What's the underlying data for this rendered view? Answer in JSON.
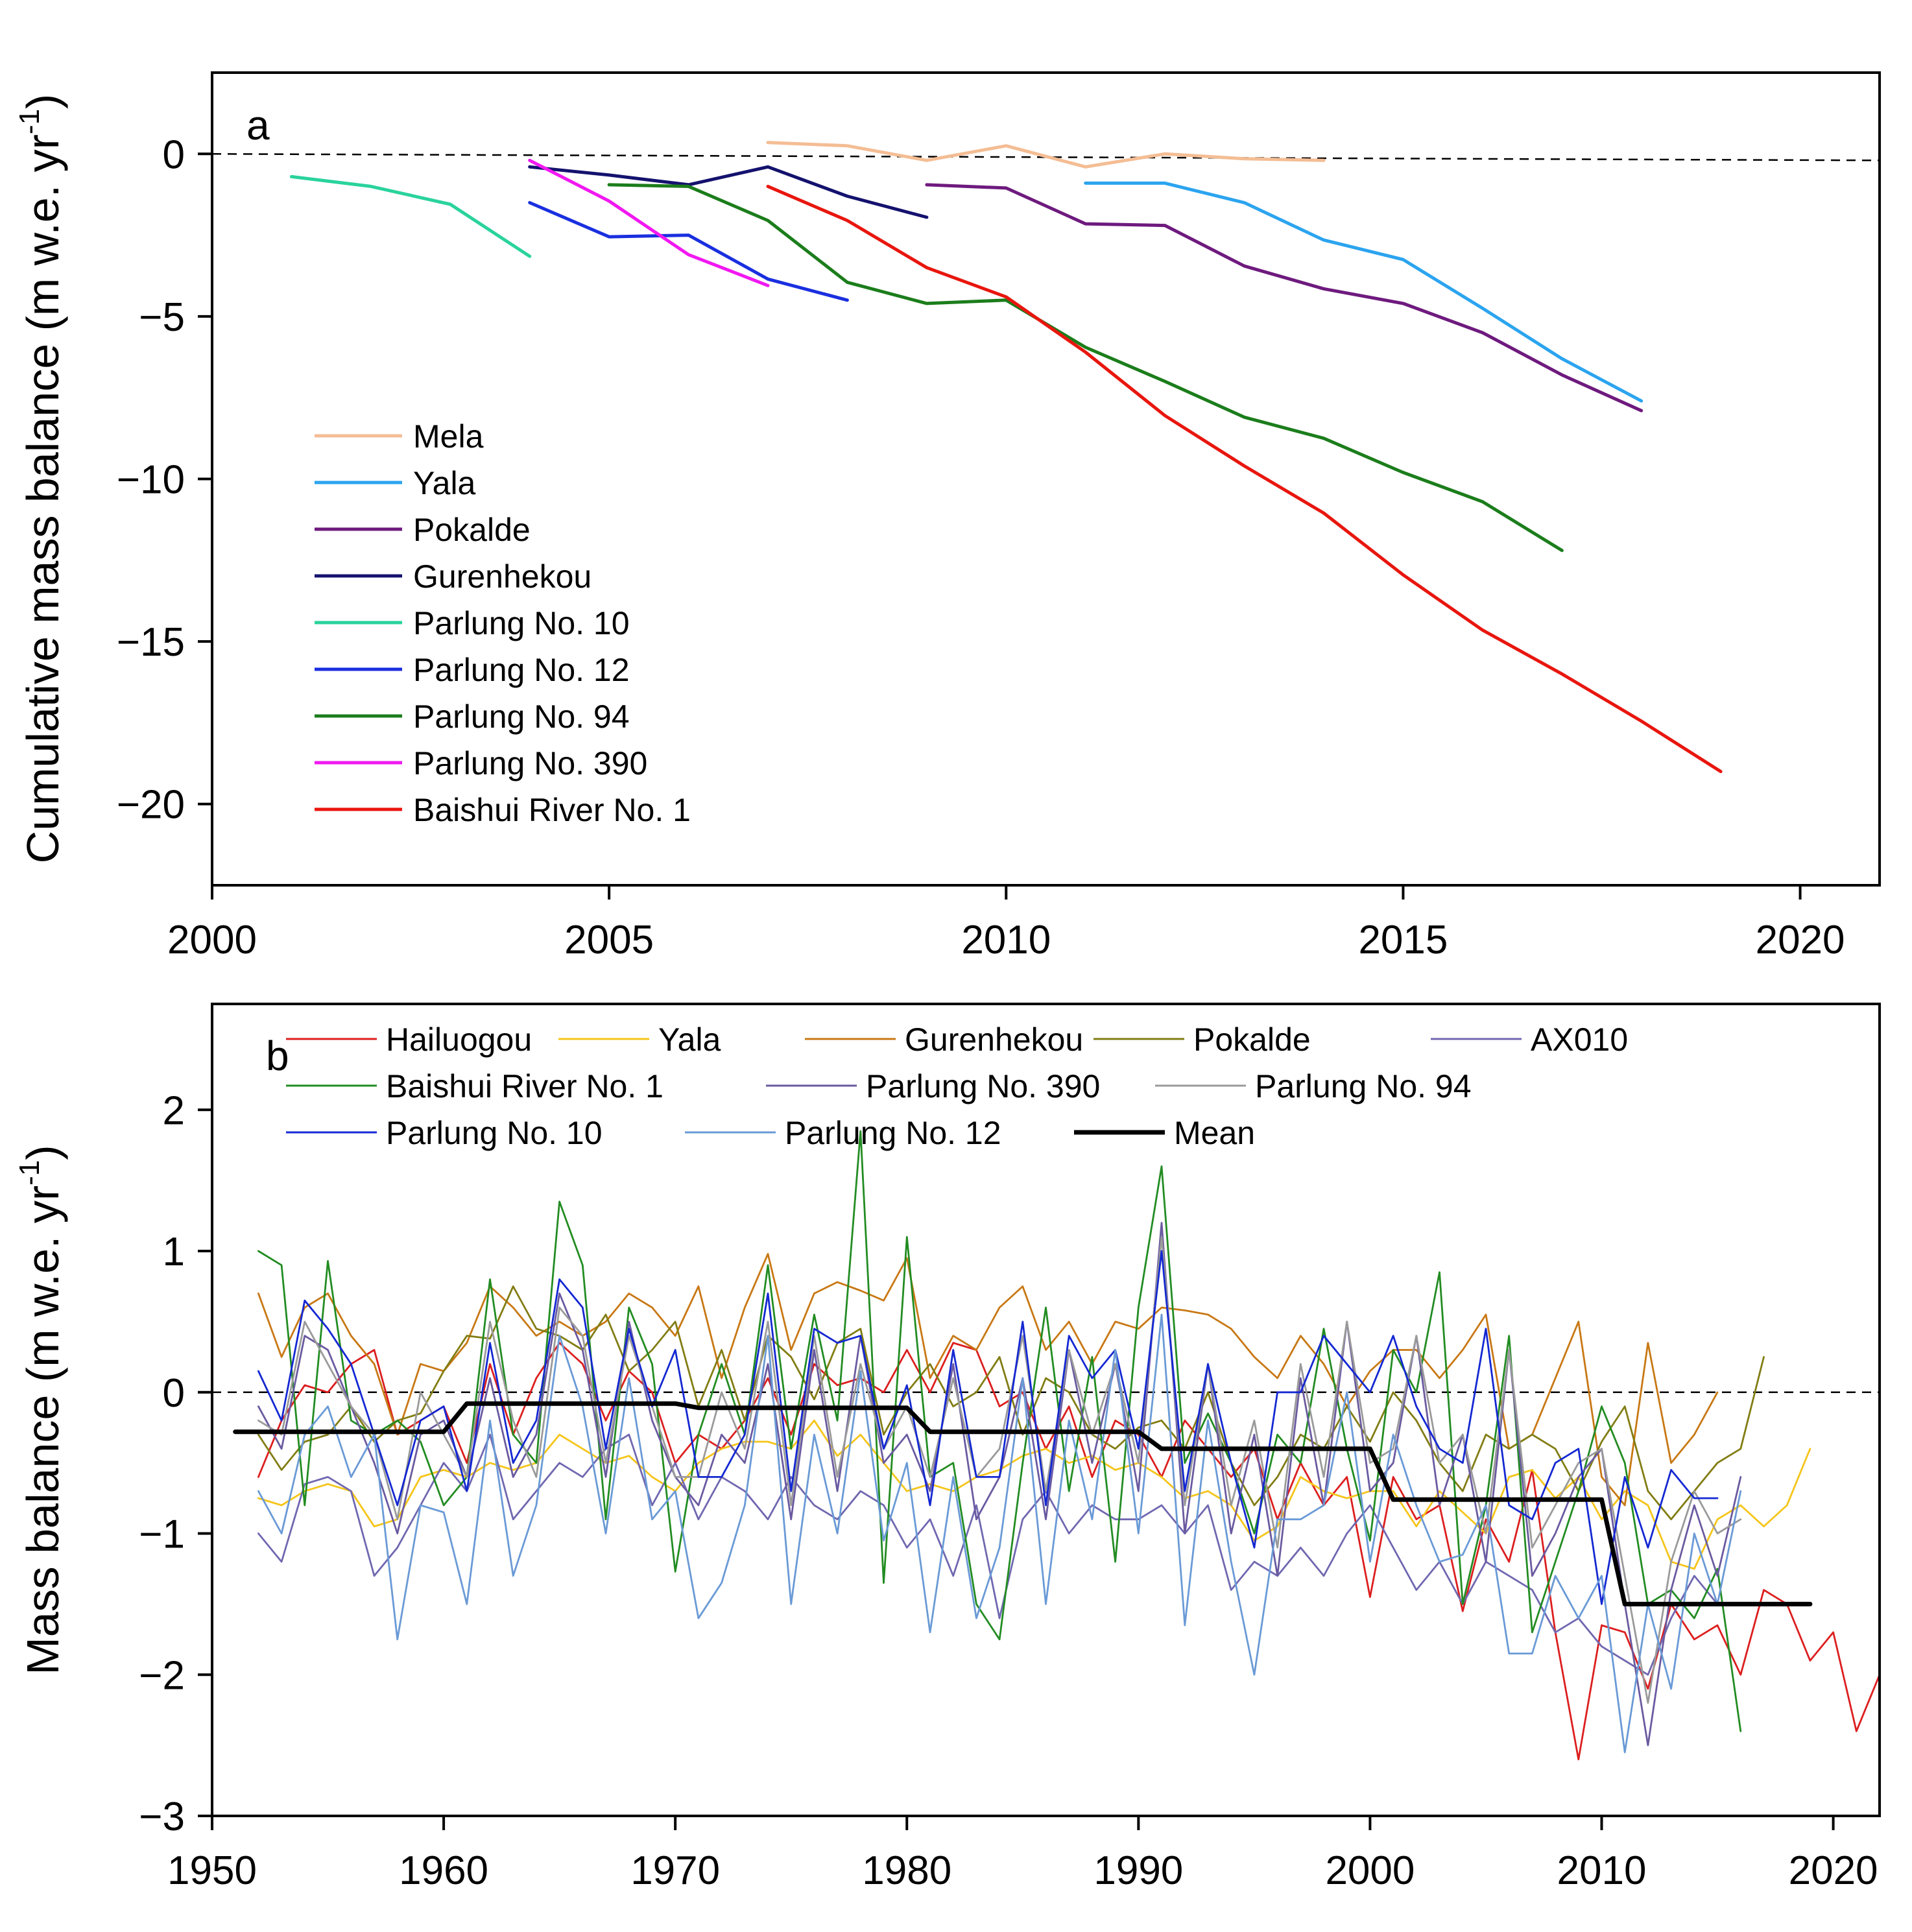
{
  "chart_data": [
    {
      "panel": "a",
      "type": "line",
      "ylabel_main": "Cumulative mass balance (m w.e. yr",
      "ylabel_sup": "-1",
      "ylabel_tail": ")",
      "xlim": [
        2000,
        2021
      ],
      "ylim": [
        -22.5,
        2.5
      ],
      "xticks": [
        2000,
        2005,
        2010,
        2015,
        2020
      ],
      "xtick_labels": [
        "2000",
        "2005",
        "2010",
        "2015",
        "2020"
      ],
      "yticks": [
        0,
        -5,
        -10,
        -15,
        -20
      ],
      "ytick_labels": [
        "0",
        "−5",
        "−10",
        "−15",
        "−20"
      ],
      "reference_line": {
        "x": [
          2000,
          2021
        ],
        "y": [
          0,
          -0.2
        ],
        "style": "dashed"
      },
      "legend_position": "lower-left",
      "series": [
        {
          "name": "Mela",
          "color": "#f4bd94",
          "x": [
            2007,
            2008,
            2009,
            2010,
            2011,
            2012,
            2013,
            2014
          ],
          "y": [
            0.35,
            0.25,
            -0.2,
            0.25,
            -0.4,
            0.0,
            -0.15,
            -0.2
          ]
        },
        {
          "name": "Yala",
          "color": "#2ba4ef",
          "x": [
            2011,
            2012,
            2013,
            2014,
            2015,
            2016,
            2017,
            2018
          ],
          "y": [
            -0.9,
            -0.9,
            -1.5,
            -2.65,
            -3.25,
            -4.75,
            -6.3,
            -7.6
          ]
        },
        {
          "name": "Pokalde",
          "color": "#6e1a7e",
          "x": [
            2009,
            2010,
            2011,
            2012,
            2013,
            2014,
            2015,
            2016,
            2017,
            2018
          ],
          "y": [
            -0.95,
            -1.05,
            -2.15,
            -2.2,
            -3.45,
            -4.15,
            -4.6,
            -5.5,
            -6.8,
            -7.9
          ]
        },
        {
          "name": "Gurenhekou",
          "color": "#14126e",
          "x": [
            2004,
            2005,
            2006,
            2007,
            2008,
            2009
          ],
          "y": [
            -0.4,
            -0.65,
            -0.95,
            -0.4,
            -1.3,
            -1.95
          ]
        },
        {
          "name": "Parlung No. 10",
          "color": "#2ad39c",
          "x": [
            2001,
            2002,
            2003,
            2004
          ],
          "y": [
            -0.7,
            -1.0,
            -1.55,
            -3.15
          ]
        },
        {
          "name": "Parlung No. 12",
          "color": "#1a2fdf",
          "x": [
            2004,
            2005,
            2006,
            2007,
            2008
          ],
          "y": [
            -1.5,
            -2.55,
            -2.5,
            -3.85,
            -4.5
          ]
        },
        {
          "name": "Parlung No. 94",
          "color": "#1b7d1b",
          "x": [
            2005,
            2006,
            2007,
            2008,
            2009,
            2010,
            2011,
            2012,
            2013,
            2014,
            2015,
            2016,
            2017
          ],
          "y": [
            -0.95,
            -1.0,
            -2.05,
            -3.95,
            -4.6,
            -4.5,
            -5.95,
            -7.0,
            -8.1,
            -8.75,
            -9.8,
            -10.7,
            -12.2
          ]
        },
        {
          "name": "Parlung No. 390",
          "color": "#f118f1",
          "x": [
            2004,
            2005,
            2006,
            2007
          ],
          "y": [
            -0.2,
            -1.45,
            -3.1,
            -4.05
          ]
        },
        {
          "name": "Baishui River No. 1",
          "color": "#e8160e",
          "x": [
            2007,
            2008,
            2009,
            2010,
            2011,
            2012,
            2013,
            2014,
            2015,
            2016,
            2017,
            2018,
            2019
          ],
          "y": [
            -1.0,
            -2.05,
            -3.5,
            -4.4,
            -6.1,
            -8.05,
            -9.6,
            -11.05,
            -12.95,
            -14.65,
            -16.0,
            -17.45,
            -19.0
          ]
        }
      ]
    },
    {
      "panel": "b",
      "type": "line",
      "ylabel_main": "Mass balance (m w.e. yr",
      "ylabel_sup": "-1",
      "ylabel_tail": ")",
      "xlim": [
        1950,
        2022
      ],
      "ylim": [
        -3,
        2.75
      ],
      "xticks": [
        1950,
        1960,
        1970,
        1980,
        1990,
        2000,
        2010,
        2020
      ],
      "xtick_labels": [
        "1950",
        "1960",
        "1970",
        "1980",
        "1990",
        "2000",
        "2010",
        "2020"
      ],
      "yticks": [
        2,
        1,
        0,
        -1,
        -2,
        -3
      ],
      "ytick_labels": [
        "2",
        "1",
        "0",
        "−1",
        "−2",
        "−3"
      ],
      "reference_line": {
        "x": [
          1950,
          2022
        ],
        "y": [
          0,
          0
        ],
        "style": "dashed"
      },
      "legend_position": "top",
      "series": [
        {
          "name": "Hailuogou",
          "color": "#dc1e1e",
          "x0": 1952,
          "y": [
            -0.6,
            -0.2,
            0.05,
            0.0,
            0.2,
            0.3,
            -0.3,
            -0.2,
            -0.1,
            -0.5,
            0.2,
            -0.3,
            0.1,
            0.35,
            0.2,
            -0.2,
            0.15,
            0.0,
            -0.5,
            -0.3,
            -0.4,
            -0.2,
            0.1,
            -0.3,
            0.2,
            0.05,
            0.1,
            0.0,
            0.3,
            0.0,
            0.35,
            0.3,
            -0.1,
            0.0,
            -0.4,
            -0.1,
            -0.6,
            -0.2,
            -0.3,
            -0.6,
            -0.2,
            -0.4,
            -0.6,
            -0.4,
            -0.9,
            -0.5,
            -0.8,
            -0.6,
            -1.45,
            -0.6,
            -0.9,
            -0.8,
            -1.55,
            -0.9,
            -1.2,
            -0.55,
            -1.7,
            -2.6,
            -1.65,
            -1.7,
            -2.1,
            -1.5,
            -1.75,
            -1.65,
            -2.0,
            -1.4,
            -1.5,
            -1.9,
            -1.7,
            -2.4,
            -2.0
          ]
        },
        {
          "name": "Yala",
          "color": "#f5c51a",
          "x0": 1952,
          "y": [
            -0.75,
            -0.8,
            -0.7,
            -0.65,
            -0.7,
            -0.95,
            -0.9,
            -0.6,
            -0.55,
            -0.6,
            -0.5,
            -0.55,
            -0.5,
            -0.3,
            -0.4,
            -0.5,
            -0.45,
            -0.6,
            -0.7,
            -0.5,
            -0.4,
            -0.35,
            -0.35,
            -0.4,
            -0.2,
            -0.45,
            -0.3,
            -0.5,
            -0.7,
            -0.65,
            -0.7,
            -0.6,
            -0.55,
            -0.45,
            -0.4,
            -0.5,
            -0.45,
            -0.55,
            -0.5,
            -0.6,
            -0.75,
            -0.7,
            -0.8,
            -1.05,
            -0.95,
            -0.6,
            -0.7,
            -0.75,
            -0.7,
            -0.7,
            -0.95,
            -0.7,
            -0.85,
            -1.0,
            -0.6,
            -0.55,
            -0.75,
            -0.6,
            -0.9,
            -0.7,
            -0.8,
            -1.2,
            -1.25,
            -0.9,
            -0.8,
            -0.95,
            -0.8,
            -0.4
          ]
        },
        {
          "name": "Gurenhekou",
          "color": "#c87814",
          "x0": 1952,
          "y": [
            0.7,
            0.25,
            0.6,
            0.7,
            0.4,
            0.2,
            -0.3,
            0.2,
            0.15,
            0.35,
            0.75,
            0.6,
            0.4,
            0.5,
            0.4,
            0.5,
            0.7,
            0.6,
            0.4,
            0.75,
            0.1,
            0.6,
            0.98,
            0.3,
            0.7,
            0.78,
            0.72,
            0.65,
            0.95,
            0.1,
            0.4,
            0.3,
            0.6,
            0.75,
            0.3,
            0.5,
            0.2,
            0.5,
            0.45,
            0.6,
            0.58,
            0.55,
            0.45,
            0.25,
            0.1,
            0.4,
            0.2,
            -0.1,
            0.15,
            0.3,
            0.3,
            0.1,
            0.3,
            0.55,
            -0.4,
            -0.3,
            0.1,
            0.5,
            -0.6,
            -0.8,
            0.35,
            -0.5,
            -0.3,
            0.0
          ]
        },
        {
          "name": "Pokalde",
          "color": "#827d14",
          "x0": 1952,
          "y": [
            -0.3,
            -0.55,
            -0.35,
            -0.3,
            -0.1,
            -0.35,
            -0.2,
            -0.15,
            0.15,
            0.4,
            0.38,
            0.75,
            0.45,
            0.4,
            0.3,
            0.55,
            0.15,
            0.3,
            0.5,
            -0.1,
            0.3,
            -0.2,
            0.4,
            0.25,
            -0.05,
            0.35,
            0.45,
            -0.3,
            0.0,
            0.2,
            -0.1,
            0.0,
            0.25,
            -0.3,
            0.1,
            0.0,
            -0.3,
            -0.4,
            -0.25,
            -0.2,
            -0.4,
            0.0,
            -0.5,
            -0.8,
            -0.6,
            -0.3,
            -0.4,
            -0.1,
            -0.35,
            0.0,
            -0.2,
            -0.5,
            -0.7,
            -0.3,
            -0.4,
            -0.3,
            -0.4,
            -0.7,
            -0.35,
            -0.1,
            -0.7,
            -0.9,
            -0.7,
            -0.5,
            -0.4,
            0.25
          ]
        },
        {
          "name": "AX010",
          "color": "#7068b0",
          "x0": 1952,
          "y": [
            -1.0,
            -1.2,
            -0.65,
            -0.6,
            -0.7,
            -1.3,
            -1.1,
            -0.8,
            -0.5,
            -0.7,
            -0.3,
            -0.9,
            -0.7,
            -0.5,
            -0.6,
            -0.4,
            -0.3,
            -0.8,
            -0.5,
            -0.9,
            -0.6,
            -0.7,
            -0.9,
            -0.6,
            -0.8,
            -0.9,
            -0.7,
            -0.8,
            -1.1,
            -0.9,
            -1.3,
            -0.8,
            -1.6,
            -0.9,
            -0.7,
            -1.0,
            -0.8,
            -0.9,
            -0.9,
            -0.8,
            -1.0,
            -0.8,
            -1.4,
            -1.2,
            -1.3,
            -1.1,
            -1.3,
            -1.0,
            -0.8,
            -1.1,
            -1.4,
            -1.2,
            -1.5,
            -1.2,
            -1.3,
            -1.4,
            -1.7,
            -1.6,
            -1.8,
            -1.9,
            -2.0,
            -1.6,
            -1.3,
            -1.5
          ]
        },
        {
          "name": "Baishui River No. 1",
          "color": "#228c22",
          "x0": 1952,
          "y": [
            1.0,
            0.9,
            -0.8,
            0.93,
            -0.2,
            -0.3,
            -0.2,
            -0.35,
            -0.8,
            -0.6,
            0.8,
            -0.3,
            -0.5,
            1.35,
            0.9,
            -0.9,
            0.6,
            0.2,
            -1.27,
            -0.3,
            0.2,
            -0.3,
            0.9,
            -0.4,
            0.55,
            -0.2,
            1.85,
            -1.35,
            1.1,
            -0.6,
            -0.5,
            -1.5,
            -1.75,
            -0.5,
            0.6,
            -0.7,
            0.25,
            -1.2,
            0.6,
            1.6,
            -0.5,
            -0.15,
            -0.5,
            -1.0,
            -0.3,
            -0.5,
            0.45,
            -0.4,
            -1.05,
            0.3,
            0.0,
            0.85,
            -1.5,
            -0.8,
            0.4,
            -1.7,
            -1.2,
            -0.7,
            -0.1,
            -0.5,
            -1.5,
            -1.4,
            -1.6,
            -1.25,
            -2.4
          ]
        },
        {
          "name": "Parlung No. 390",
          "color": "#6a5aa0",
          "x0": 1952,
          "y": [
            -0.1,
            -0.4,
            0.4,
            0.3,
            -0.1,
            -0.5,
            -1.0,
            -0.3,
            -0.2,
            -0.6,
            0.1,
            -0.6,
            -0.3,
            0.7,
            0.3,
            -0.6,
            0.5,
            -0.2,
            -0.6,
            -0.8,
            -0.3,
            -0.5,
            0.2,
            -0.9,
            0.3,
            -0.7,
            0.4,
            -0.5,
            -0.3,
            -0.7,
            0.2,
            -0.9,
            -0.6,
            0.1,
            -0.9,
            0.3,
            -0.5,
            0.2,
            -0.7,
            1.2,
            -1.0,
            0.2,
            -1.0,
            -0.3,
            -1.3,
            0.1,
            -0.8,
            0.5,
            -0.7,
            -0.5,
            0.4,
            -0.8,
            -0.3,
            -1.2,
            0.3,
            -1.3,
            -1.0,
            -0.6,
            -0.4,
            -1.5,
            -2.5,
            -1.4,
            -0.8,
            -1.3,
            -0.6
          ]
        },
        {
          "name": "Parlung No. 94",
          "color": "#9a9a9a",
          "x0": 1952,
          "y": [
            -0.2,
            -0.3,
            0.5,
            0.2,
            -0.1,
            -0.3,
            -0.9,
            0.0,
            -0.3,
            -0.6,
            0.5,
            -0.2,
            -0.6,
            0.6,
            0.4,
            -0.5,
            0.4,
            -0.1,
            -0.6,
            -0.6,
            0.0,
            -0.4,
            0.5,
            -0.8,
            0.4,
            -0.6,
            0.2,
            -0.4,
            -0.1,
            -0.6,
            0.1,
            -0.6,
            -0.4,
            0.4,
            -0.7,
            0.3,
            -0.3,
            0.2,
            -0.5,
            1.1,
            -0.8,
            0.2,
            -0.8,
            -0.2,
            -1.1,
            0.2,
            -0.6,
            0.5,
            -0.5,
            -0.4,
            0.4,
            -0.5,
            -0.3,
            -1.0,
            0.3,
            -1.1,
            -0.8,
            -0.5,
            -0.4,
            -1.3,
            -2.2,
            -1.2,
            -0.7,
            -1.0,
            -0.9
          ]
        },
        {
          "name": "Parlung No. 10",
          "color": "#1428d2",
          "x0": 1952,
          "y": [
            0.15,
            -0.2,
            0.65,
            0.45,
            0.2,
            -0.3,
            -0.8,
            -0.2,
            -0.1,
            -0.7,
            0.35,
            -0.5,
            -0.2,
            0.8,
            0.6,
            -0.4,
            0.45,
            -0.1,
            0.3,
            -0.6,
            -0.6,
            -0.3,
            0.7,
            -0.7,
            0.45,
            0.35,
            0.4,
            -0.4,
            0.05,
            -0.8,
            0.3,
            -0.6,
            -0.6,
            0.5,
            -0.8,
            0.4,
            0.1,
            0.3,
            -0.4,
            1.0,
            -0.7,
            0.2,
            -0.5,
            -1.1,
            0.0,
            0.0,
            0.4,
            0.2,
            0.0,
            0.4,
            -0.1,
            -0.4,
            -0.5,
            0.45,
            -0.8,
            -0.9,
            -0.5,
            -0.4,
            -1.5,
            -0.6,
            -1.1,
            -0.55,
            -0.75,
            -0.75
          ]
        },
        {
          "name": "Parlung No. 12",
          "color": "#6a9ad6",
          "x0": 1952,
          "y": [
            -0.7,
            -1.0,
            -0.3,
            -0.1,
            -0.6,
            -0.3,
            -1.75,
            -0.8,
            -0.85,
            -1.5,
            -0.2,
            -1.3,
            -0.8,
            0.4,
            -0.1,
            -1.0,
            0.1,
            -0.9,
            -0.7,
            -1.6,
            -1.35,
            -0.8,
            0.4,
            -1.5,
            -0.3,
            -1.0,
            0.15,
            -1.05,
            -0.5,
            -1.7,
            -0.6,
            -1.6,
            -1.1,
            0.1,
            -1.5,
            -0.2,
            -0.9,
            0.3,
            -1.0,
            0.55,
            -1.65,
            -0.2,
            -1.2,
            -2.0,
            -0.9,
            -0.9,
            -0.8,
            0.0,
            -1.2,
            -0.3,
            -0.8,
            -1.2,
            -1.15,
            -0.8,
            -1.85,
            -1.85,
            -1.3,
            -1.6,
            -1.3,
            -2.55,
            -1.5,
            -2.1,
            -1.0,
            -1.5,
            -0.7
          ]
        },
        {
          "name": "Mean",
          "color": "#000000",
          "x": [
            1951,
            1960,
            1961,
            1970,
            1971,
            1980,
            1981,
            1990,
            1991,
            2000,
            2001,
            2010,
            2011,
            2019
          ],
          "y": [
            -0.28,
            -0.28,
            -0.08,
            -0.08,
            -0.11,
            -0.11,
            -0.28,
            -0.28,
            -0.4,
            -0.4,
            -0.76,
            -0.76,
            -1.5,
            -1.5
          ]
        }
      ]
    }
  ]
}
